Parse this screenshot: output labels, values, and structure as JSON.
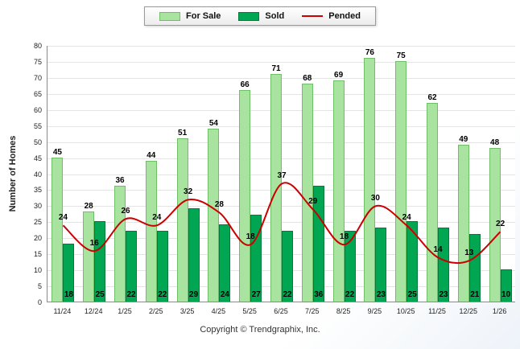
{
  "chart_data": {
    "type": "bar",
    "subtype": "grouped-bars-with-line-overlay",
    "categories": [
      "11/24",
      "12/24",
      "1/25",
      "2/25",
      "3/25",
      "4/25",
      "5/25",
      "6/25",
      "7/25",
      "8/25",
      "9/25",
      "10/25",
      "11/25",
      "12/25",
      "1/26"
    ],
    "series": [
      {
        "name": "For Sale",
        "type": "bar",
        "color": "#A8E4A0",
        "border": "#6fbf69",
        "values": [
          45,
          28,
          36,
          44,
          51,
          54,
          66,
          71,
          68,
          69,
          76,
          75,
          62,
          49,
          48
        ]
      },
      {
        "name": "Sold",
        "type": "bar",
        "color": "#00A651",
        "border": "#057a38",
        "values": [
          18,
          25,
          22,
          22,
          29,
          24,
          27,
          22,
          36,
          22,
          23,
          25,
          23,
          21,
          10
        ]
      },
      {
        "name": "Pended",
        "type": "line",
        "color": "#CC0000",
        "values": [
          24,
          16,
          26,
          24,
          32,
          28,
          18,
          37,
          29,
          18,
          30,
          24,
          14,
          13,
          22
        ]
      }
    ],
    "title": "",
    "xlabel": "",
    "ylabel": "Number of Homes",
    "ylim": [
      0,
      80
    ],
    "ytick_step": 5,
    "grid": true,
    "legend_position": "top-center"
  },
  "footer": {
    "copyright": "Copyright © Trendgraphix, Inc."
  }
}
